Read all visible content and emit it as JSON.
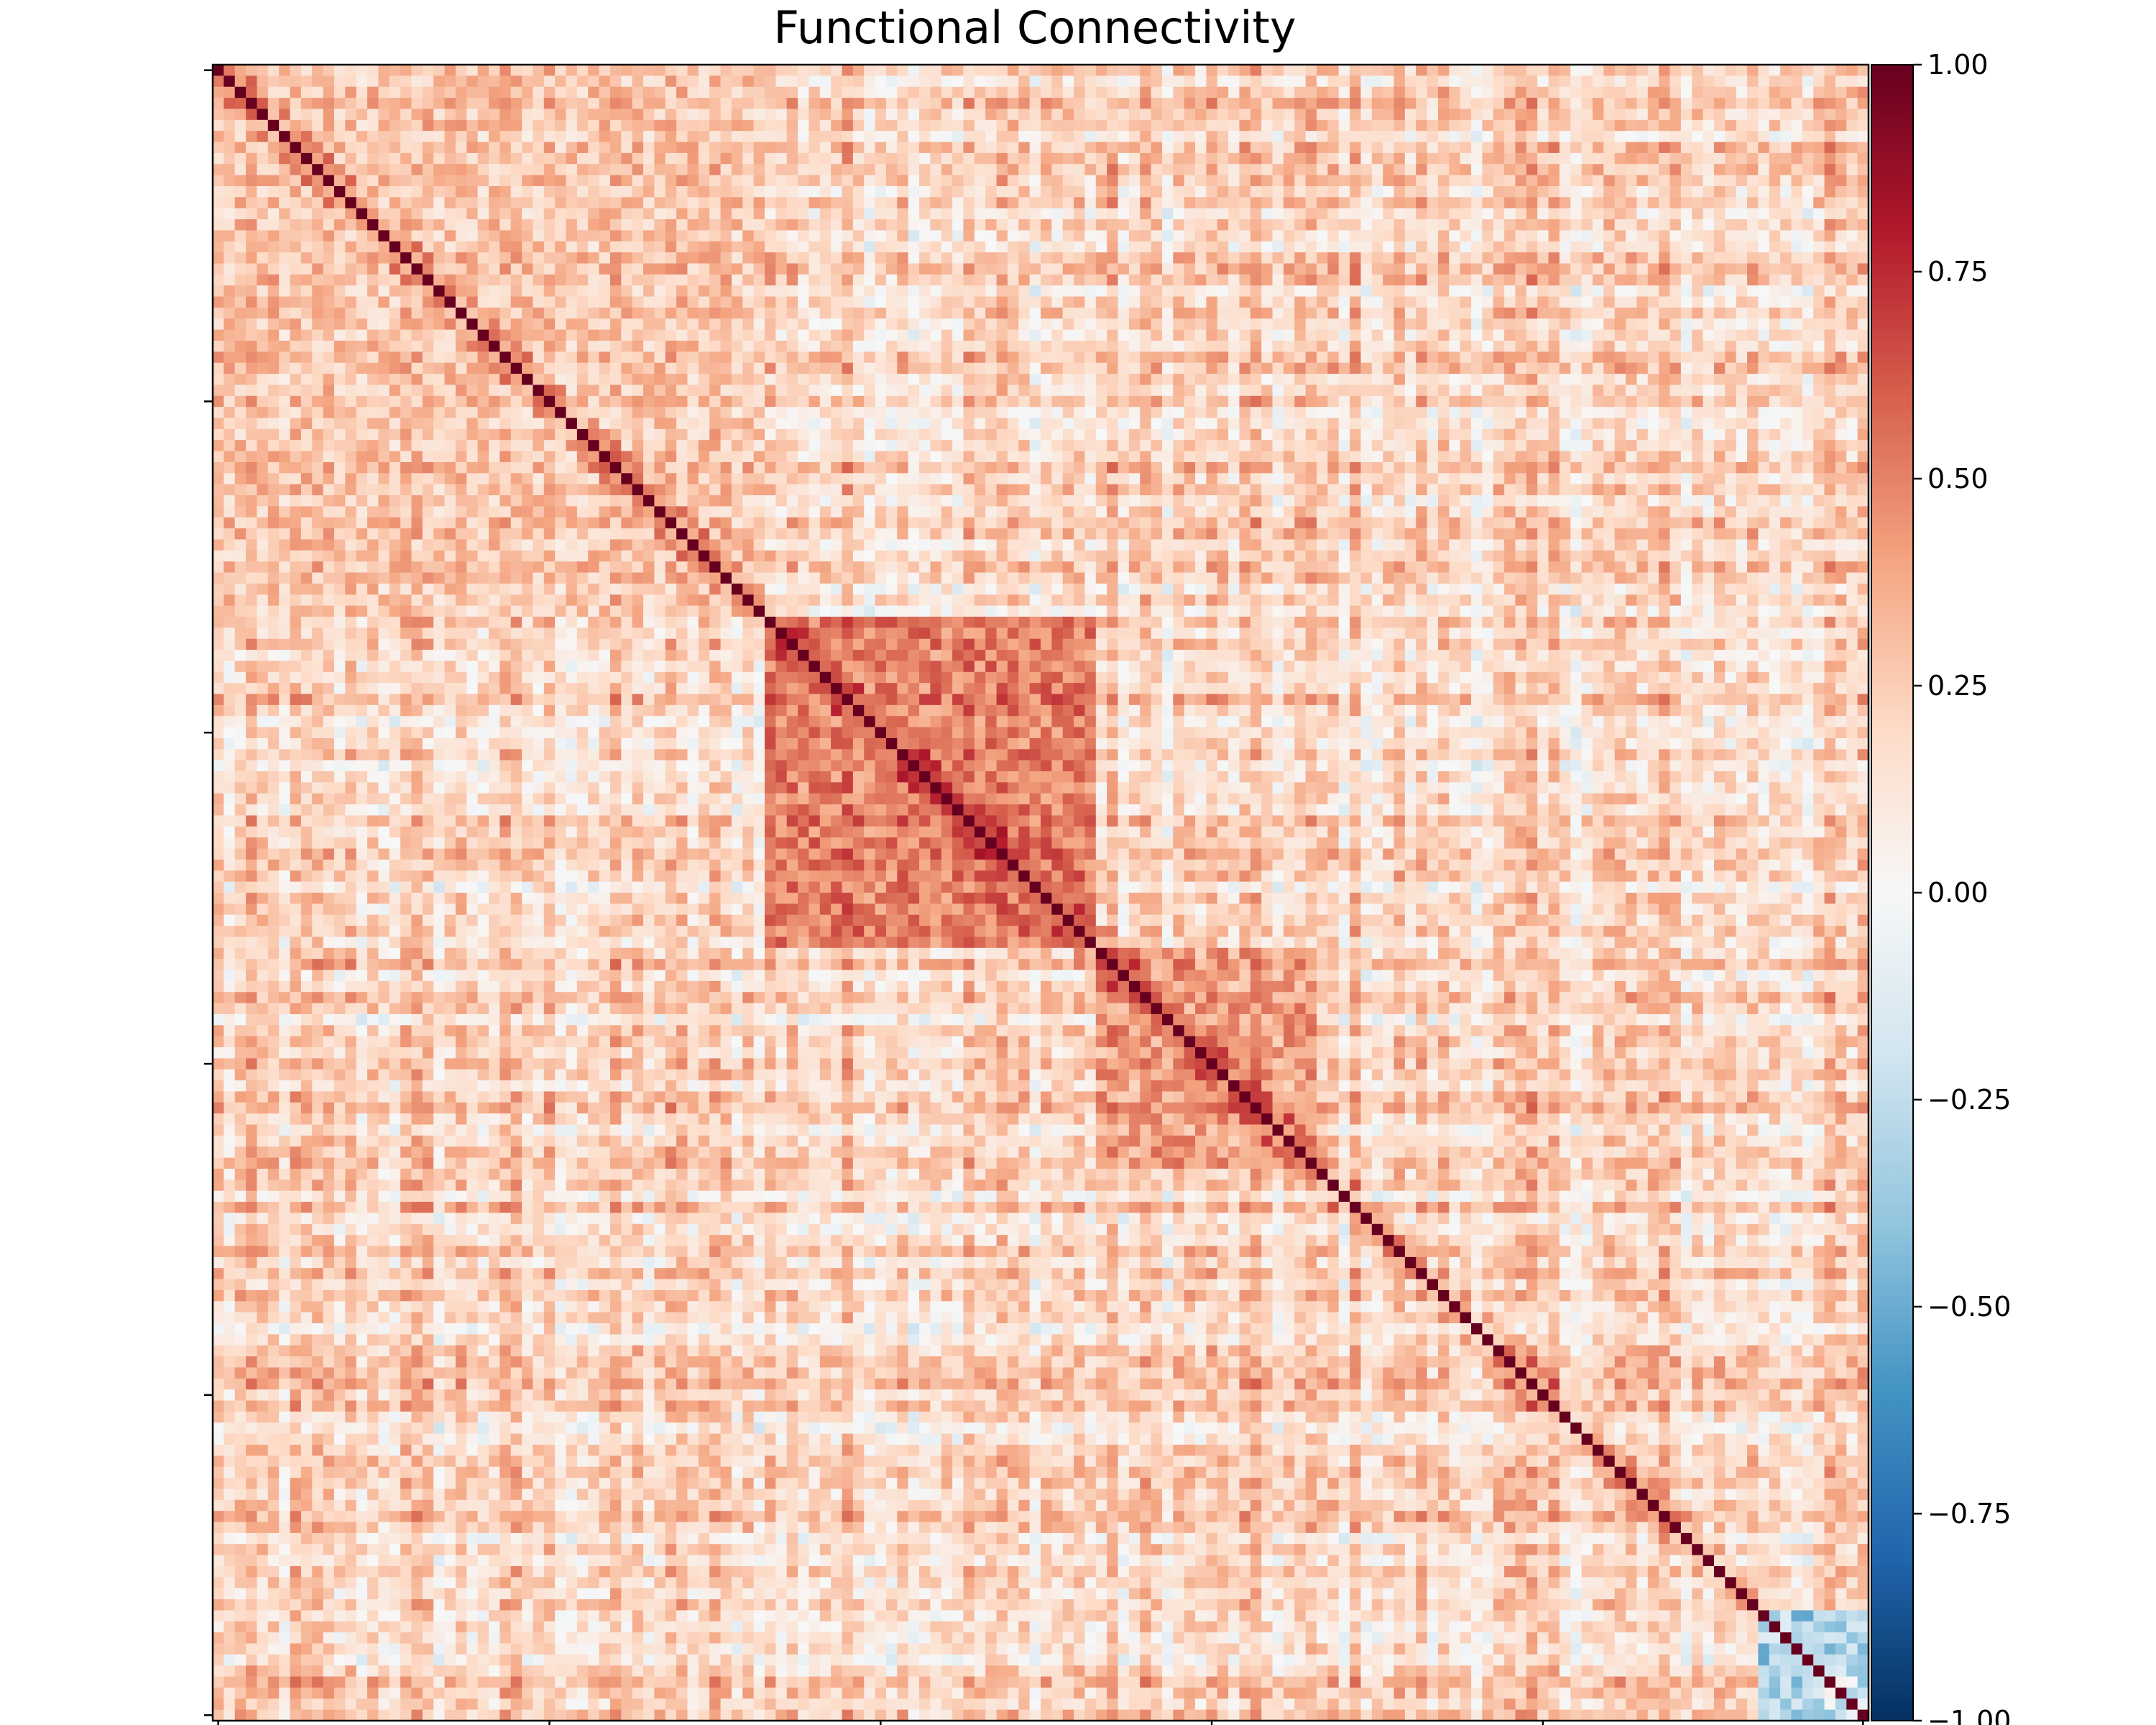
{
  "chart_data": {
    "type": "heatmap",
    "title": "Functional Connectivity",
    "xlabel": "",
    "ylabel": "",
    "matrix_size": 150,
    "x_tick_labels": [
      "",
      "",
      "",
      "",
      "",
      ""
    ],
    "y_tick_labels": [
      "",
      "",
      "",
      "",
      "",
      ""
    ],
    "colorbar": {
      "colormap": "RdBu_r",
      "range": [
        -1.0,
        1.0
      ],
      "ticks": [
        1.0,
        0.75,
        0.5,
        0.25,
        0.0,
        -0.25,
        -0.5,
        -0.75,
        -1.0
      ],
      "tick_labels": [
        "1.00",
        "0.75",
        "0.50",
        "0.25",
        "0.00",
        "−0.25",
        "−0.50",
        "−0.75",
        "−1.00"
      ],
      "colors": [
        "#053061",
        "#2166ac",
        "#4393c3",
        "#92c5de",
        "#d1e5f0",
        "#f7f7f7",
        "#fddbc7",
        "#f4a582",
        "#d6604d",
        "#b2182b",
        "#67001f"
      ]
    },
    "diagonal_value": 1.0,
    "blocks": [
      {
        "region": "upper-left",
        "rows": [
          0,
          50
        ],
        "cols": [
          0,
          50
        ],
        "value": 0.3
      },
      {
        "region": "center",
        "rows": [
          50,
          80
        ],
        "cols": [
          50,
          80
        ],
        "value": 0.65
      },
      {
        "region": "middle",
        "rows": [
          80,
          100
        ],
        "cols": [
          80,
          100
        ],
        "value": 0.5
      },
      {
        "region": "lower-right",
        "rows": [
          140,
          150
        ],
        "cols": [
          140,
          150
        ],
        "value": -0.55
      }
    ]
  }
}
